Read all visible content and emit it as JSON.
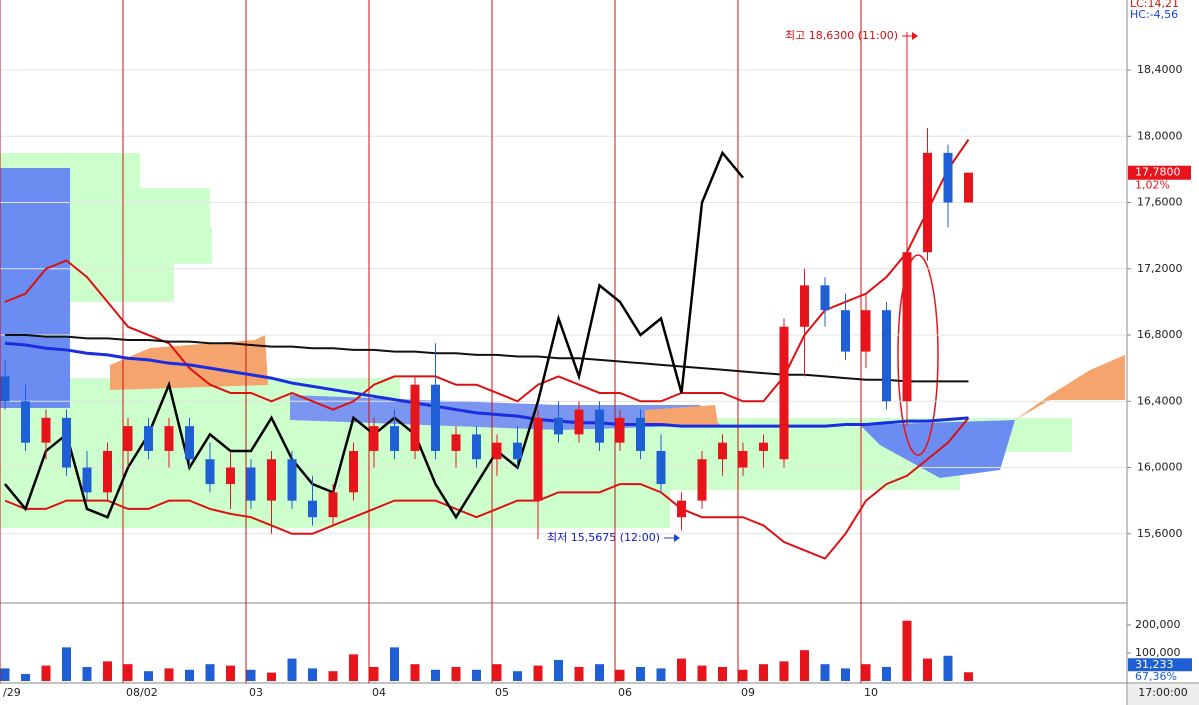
{
  "chart_data": {
    "type": "candlestick",
    "categories": [
      "/29",
      null,
      null,
      null,
      null,
      null,
      "08/02",
      null,
      null,
      null,
      null,
      null,
      "03",
      null,
      null,
      null,
      null,
      null,
      "04",
      null,
      null,
      null,
      null,
      null,
      "05",
      null,
      null,
      null,
      null,
      null,
      "06",
      null,
      null,
      null,
      null,
      null,
      "09",
      null,
      null,
      null,
      null,
      null,
      "10",
      null,
      null,
      null,
      null,
      null
    ],
    "open": [
      16.55,
      16.4,
      16.15,
      16.3,
      16.0,
      15.85,
      16.1,
      16.25,
      16.1,
      16.25,
      16.05,
      15.9,
      16.0,
      15.8,
      16.05,
      15.8,
      15.7,
      15.85,
      16.1,
      16.25,
      16.1,
      16.5,
      16.1,
      16.2,
      16.05,
      16.15,
      15.8,
      16.3,
      16.2,
      16.35,
      16.15,
      16.3,
      16.1,
      15.7,
      15.8,
      16.05,
      16.0,
      16.1,
      16.05,
      16.85,
      17.1,
      16.95,
      16.7,
      16.95,
      16.4,
      17.3,
      17.9,
      17.6
    ],
    "high": [
      16.65,
      16.5,
      16.35,
      16.35,
      16.1,
      16.15,
      16.3,
      16.3,
      16.3,
      16.3,
      16.15,
      16.1,
      16.05,
      16.1,
      16.1,
      15.95,
      15.9,
      16.15,
      16.3,
      16.35,
      16.55,
      16.75,
      16.25,
      16.25,
      16.2,
      16.25,
      16.35,
      16.4,
      16.4,
      16.4,
      16.35,
      16.35,
      16.2,
      15.85,
      16.1,
      16.2,
      16.15,
      16.2,
      16.9,
      17.2,
      17.15,
      17.05,
      17.05,
      17.0,
      18.63,
      18.05,
      17.95,
      17.78
    ],
    "low": [
      16.35,
      16.1,
      16.05,
      15.95,
      15.8,
      15.8,
      16.0,
      16.05,
      16.0,
      16.0,
      15.85,
      15.75,
      15.75,
      15.6,
      15.75,
      15.65,
      15.65,
      15.8,
      16.0,
      16.05,
      16.05,
      16.05,
      16.0,
      16.0,
      15.95,
      16.0,
      15.5675,
      16.15,
      16.15,
      16.1,
      16.1,
      16.05,
      15.85,
      15.62,
      15.75,
      15.95,
      15.95,
      16.0,
      16.0,
      16.55,
      16.85,
      16.65,
      16.6,
      16.35,
      16.25,
      17.25,
      17.45,
      17.6
    ],
    "close": [
      16.4,
      16.15,
      16.3,
      16.0,
      15.85,
      16.1,
      16.25,
      16.1,
      16.25,
      16.05,
      15.9,
      16.0,
      15.8,
      16.05,
      15.8,
      15.7,
      15.85,
      16.1,
      16.25,
      16.1,
      16.5,
      16.1,
      16.2,
      16.05,
      16.15,
      16.05,
      16.3,
      16.2,
      16.35,
      16.15,
      16.3,
      16.1,
      15.9,
      15.8,
      16.05,
      16.15,
      16.1,
      16.15,
      16.85,
      17.1,
      16.95,
      16.7,
      16.95,
      16.4,
      17.3,
      17.9,
      17.6,
      17.78
    ],
    "up_color": "#e8141b",
    "down_color": "#1f5fd6",
    "ylim": [
      15.2,
      18.823
    ],
    "yticks": [
      {
        "value": 15.6,
        "label": "15,6000"
      },
      {
        "value": 16.0,
        "label": "16,0000"
      },
      {
        "value": 16.4,
        "label": "16,4000"
      },
      {
        "value": 16.8,
        "label": "16,8000"
      },
      {
        "value": 17.2,
        "label": "17,2000"
      },
      {
        "value": 17.6,
        "label": "17,6000"
      },
      {
        "value": 18.0,
        "label": "18,0000"
      },
      {
        "value": 18.4,
        "label": "18,4000"
      }
    ],
    "grid": true,
    "overlays": [
      {
        "color": "#dd1111",
        "values": [
          17.0,
          17.05,
          17.2,
          17.25,
          17.15,
          17.0,
          16.85,
          16.8,
          16.75,
          16.6,
          16.5,
          16.45,
          16.45,
          16.4,
          16.45,
          16.4,
          16.35,
          16.4,
          16.5,
          16.55,
          16.55,
          16.55,
          16.5,
          16.5,
          16.45,
          16.4,
          16.5,
          16.55,
          16.5,
          16.45,
          16.45,
          16.4,
          16.4,
          16.45,
          16.45,
          16.45,
          16.4,
          16.4,
          16.55,
          16.8,
          16.95,
          17.0,
          17.05,
          17.15,
          17.3,
          17.55,
          17.8,
          17.98
        ]
      },
      {
        "color": "#dd1111",
        "values": [
          15.8,
          15.75,
          15.75,
          15.8,
          15.8,
          15.8,
          15.75,
          15.75,
          15.8,
          15.8,
          15.75,
          15.72,
          15.7,
          15.65,
          15.6,
          15.6,
          15.65,
          15.7,
          15.75,
          15.8,
          15.8,
          15.8,
          15.75,
          15.7,
          15.75,
          15.8,
          15.8,
          15.85,
          15.85,
          15.85,
          15.9,
          15.9,
          15.85,
          15.75,
          15.7,
          15.7,
          15.7,
          15.65,
          15.55,
          15.5,
          15.45,
          15.6,
          15.8,
          15.9,
          15.95,
          16.05,
          16.15,
          16.3
        ]
      },
      {
        "color": "#111111",
        "values": [
          16.8,
          16.8,
          16.79,
          16.79,
          16.78,
          16.78,
          16.77,
          16.77,
          16.76,
          16.76,
          16.75,
          16.75,
          16.74,
          16.73,
          16.73,
          16.72,
          16.72,
          16.71,
          16.71,
          16.7,
          16.7,
          16.69,
          16.69,
          16.68,
          16.68,
          16.67,
          16.67,
          16.66,
          16.66,
          16.65,
          16.64,
          16.63,
          16.62,
          16.61,
          16.6,
          16.59,
          16.58,
          16.57,
          16.56,
          16.56,
          16.55,
          16.54,
          16.53,
          16.53,
          16.52,
          16.52,
          16.52,
          16.52
        ]
      },
      {
        "color": "#1a2ee0",
        "values": [
          16.75,
          16.74,
          16.72,
          16.71,
          16.69,
          16.68,
          16.66,
          16.65,
          16.63,
          16.62,
          16.6,
          16.58,
          16.56,
          16.54,
          16.51,
          16.49,
          16.47,
          16.45,
          16.43,
          16.41,
          16.39,
          16.37,
          16.35,
          16.33,
          16.32,
          16.31,
          16.29,
          16.28,
          16.27,
          16.27,
          16.26,
          16.26,
          16.26,
          16.25,
          16.25,
          16.25,
          16.25,
          16.25,
          16.25,
          16.25,
          16.25,
          16.26,
          16.26,
          16.27,
          16.28,
          16.28,
          16.29,
          16.3
        ]
      },
      {
        "color": "#000000",
        "values": [
          15.9,
          15.75,
          16.1,
          16.2,
          15.75,
          15.7,
          16.0,
          16.2,
          16.5,
          16.0,
          16.2,
          16.1,
          16.1,
          16.3,
          16.05,
          15.9,
          15.85,
          16.3,
          16.2,
          16.3,
          16.2,
          15.9,
          15.7,
          15.9,
          16.1,
          16.0,
          16.4,
          16.9,
          16.55,
          17.1,
          17.0,
          16.8,
          16.9,
          16.45,
          17.6,
          17.9,
          17.75,
          null,
          null,
          null,
          null,
          null,
          null,
          null,
          null,
          null,
          null,
          null
        ]
      }
    ],
    "high_note": "최고 18,6300 (11:00)",
    "low_note": "최저 15,5675 (12:00)",
    "lc": "LC:14,21",
    "hc": "HC:-4,56",
    "last_price": {
      "value": 17.78,
      "label": "17,7800"
    },
    "change": "1,02%",
    "volume": {
      "values": [
        45000,
        25000,
        55000,
        120000,
        50000,
        70000,
        60000,
        35000,
        45000,
        40000,
        60000,
        55000,
        40000,
        30000,
        80000,
        45000,
        35000,
        95000,
        50000,
        120000,
        60000,
        40000,
        50000,
        40000,
        60000,
        35000,
        55000,
        75000,
        50000,
        60000,
        40000,
        50000,
        45000,
        80000,
        55000,
        50000,
        40000,
        60000,
        70000,
        110000,
        60000,
        45000,
        60000,
        50000,
        215000,
        80000,
        90000,
        31233
      ],
      "ylim": [
        0,
        264000
      ],
      "yticks": [
        {
          "value": 100000,
          "label": "100,000"
        },
        {
          "value": 200000,
          "label": "200,000"
        }
      ],
      "last": {
        "value": 31233,
        "label": "31,233"
      },
      "ratio": "67,36%"
    },
    "time_label": "17:00:00"
  }
}
